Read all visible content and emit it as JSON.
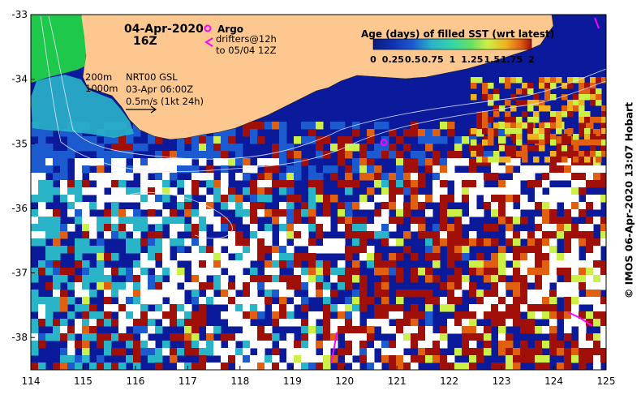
{
  "title": {
    "date": "04-Apr-2020",
    "time": "16Z"
  },
  "argo": {
    "label": "Argo",
    "drifters_line1": "drifters@12h",
    "drifters_line2": "to 05/04 12Z",
    "argo_color": "#ff00ff",
    "float_position": {
      "lon": 120.75,
      "lat": -34.98
    }
  },
  "annotations": {
    "isobath_200": "200m",
    "isobath_1000": "1000m",
    "product": "NRT00 GSL",
    "product_date": "03-Apr 06:00Z",
    "velocity_scale": "0.5m/s (1kt 24h)"
  },
  "legend": {
    "title": "Age (days) of filled SST (wrt latest)",
    "ticks": [
      "0",
      "0.25",
      "0.5",
      "0.75",
      "1",
      "1.25",
      "1.5",
      "1.75",
      "2"
    ],
    "colors": [
      "#0a1a7a",
      "#1030b0",
      "#1c5ad0",
      "#2ab4c8",
      "#34d6a8",
      "#66e060",
      "#ccf048",
      "#f0b020",
      "#e06010",
      "#a01008"
    ]
  },
  "axes": {
    "x_ticks": [
      "114",
      "115",
      "116",
      "117",
      "118",
      "119",
      "120",
      "121",
      "122",
      "123",
      "124",
      "125"
    ],
    "y_ticks": [
      "-33",
      "-34",
      "-35",
      "-36",
      "-37",
      "-38"
    ],
    "lon_range": [
      114,
      125
    ],
    "lat_range": [
      -33,
      -38.5
    ]
  },
  "colors": {
    "land": "#fcc890",
    "ocean_fresh": "#0a1a9a",
    "no_data": "#ffffff"
  },
  "credit": "© IMOS 06-Apr-2020 13:07 Hobart"
}
